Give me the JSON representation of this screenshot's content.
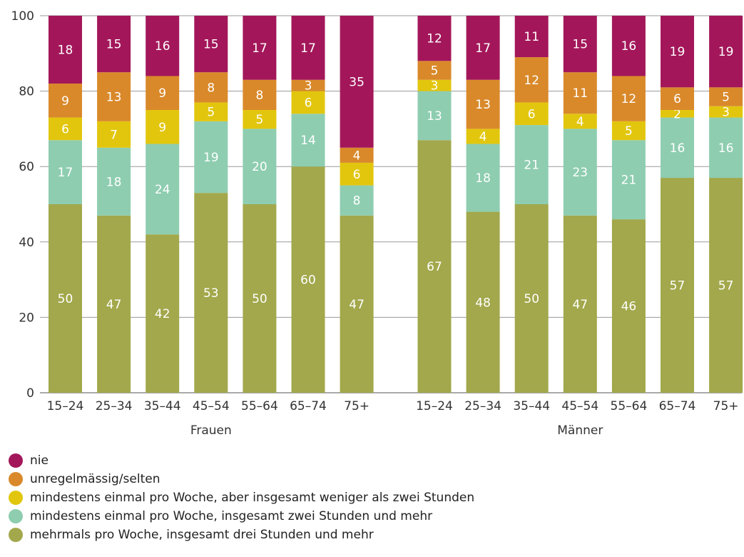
{
  "chart_data": {
    "type": "bar",
    "stacked": true,
    "ylim": [
      0,
      100
    ],
    "yticks": [
      0,
      20,
      40,
      60,
      80,
      100
    ],
    "grid": true,
    "legend_placement": "bottom",
    "groups": [
      {
        "label": "Frauen",
        "categories": [
          "15–24",
          "25–34",
          "35–44",
          "45–54",
          "55–64",
          "65–74",
          "75+"
        ],
        "series": [
          {
            "name": "mehrmals pro Woche, insgesamt drei Stunden und mehr",
            "color": "#a2a84b",
            "values": [
              50,
              47,
              42,
              53,
              50,
              60,
              47
            ]
          },
          {
            "name": "mindestens einmal pro Woche, insgesamt zwei Stunden und mehr",
            "color": "#8ecdb0",
            "values": [
              17,
              18,
              24,
              19,
              20,
              14,
              8
            ]
          },
          {
            "name": "mindestens einmal pro Woche, aber insgesamt weniger als zwei Stunden",
            "color": "#e2c60e",
            "values": [
              6,
              7,
              9,
              5,
              5,
              6,
              6
            ]
          },
          {
            "name": "unregelmässig/selten",
            "color": "#d9892a",
            "values": [
              9,
              13,
              9,
              8,
              8,
              3,
              4
            ]
          },
          {
            "name": "nie",
            "color": "#a3175a",
            "values": [
              18,
              15,
              16,
              15,
              17,
              17,
              35
            ]
          }
        ]
      },
      {
        "label": "Männer",
        "categories": [
          "15–24",
          "25–34",
          "35–44",
          "45–54",
          "55–64",
          "65–74",
          "75+"
        ],
        "series": [
          {
            "name": "mehrmals pro Woche, insgesamt drei Stunden und mehr",
            "color": "#a2a84b",
            "values": [
              67,
              48,
              50,
              47,
              46,
              57,
              57
            ]
          },
          {
            "name": "mindestens einmal pro Woche, insgesamt zwei Stunden und mehr",
            "color": "#8ecdb0",
            "values": [
              13,
              18,
              21,
              23,
              21,
              16,
              16
            ]
          },
          {
            "name": "mindestens einmal pro Woche, aber insgesamt weniger als zwei Stunden",
            "color": "#e2c60e",
            "values": [
              3,
              4,
              6,
              4,
              5,
              2,
              3
            ]
          },
          {
            "name": "unregelmässig/selten",
            "color": "#d9892a",
            "values": [
              5,
              13,
              12,
              11,
              12,
              6,
              5
            ]
          },
          {
            "name": "nie",
            "color": "#a3175a",
            "values": [
              12,
              17,
              11,
              15,
              16,
              19,
              19
            ]
          }
        ]
      }
    ],
    "legend": [
      {
        "name": "nie",
        "color": "#a3175a"
      },
      {
        "name": "unregelmässig/selten",
        "color": "#d9892a"
      },
      {
        "name": "mindestens einmal pro Woche, aber insgesamt weniger als zwei Stunden",
        "color": "#e2c60e"
      },
      {
        "name": "mindestens einmal pro Woche, insgesamt zwei Stunden und mehr",
        "color": "#8ecdb0"
      },
      {
        "name": "mehrmals pro Woche, insgesamt drei Stunden und mehr",
        "color": "#a2a84b"
      }
    ]
  }
}
